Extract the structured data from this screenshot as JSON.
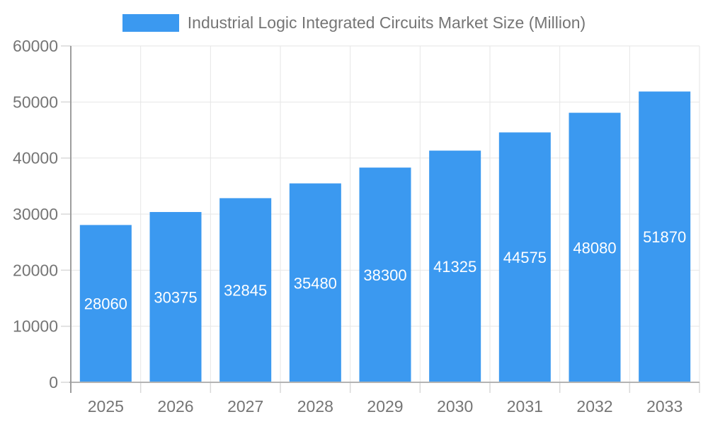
{
  "chart_data": {
    "type": "bar",
    "title": "Industrial Logic Integrated Circuits Market Size (Million)",
    "legend_entries": [
      "Industrial Logic Integrated Circuits Market Size (Million)"
    ],
    "legend_position": "top-center",
    "categories": [
      "2025",
      "2026",
      "2027",
      "2028",
      "2029",
      "2030",
      "2031",
      "2032",
      "2033"
    ],
    "values": [
      28060,
      30375,
      32845,
      35480,
      38300,
      41325,
      44575,
      48080,
      51870
    ],
    "xlabel": "",
    "ylabel": "",
    "ylim": [
      0,
      60000
    ],
    "ytick_step": 10000,
    "ytick_labels": [
      "0",
      "10000",
      "20000",
      "30000",
      "40000",
      "50000",
      "60000"
    ],
    "grid": true,
    "bar_labels_inside": true,
    "colors": {
      "bar": "#3B99F0",
      "bar_label": "#FFFFFF",
      "axis_text": "#757575",
      "gridline": "#E6E6E6",
      "tick": "#D9D9D9",
      "x_axis_line": "#B3B3B3",
      "y_axis_line": "#9E9E9E",
      "background": "#FFFFFF"
    }
  }
}
